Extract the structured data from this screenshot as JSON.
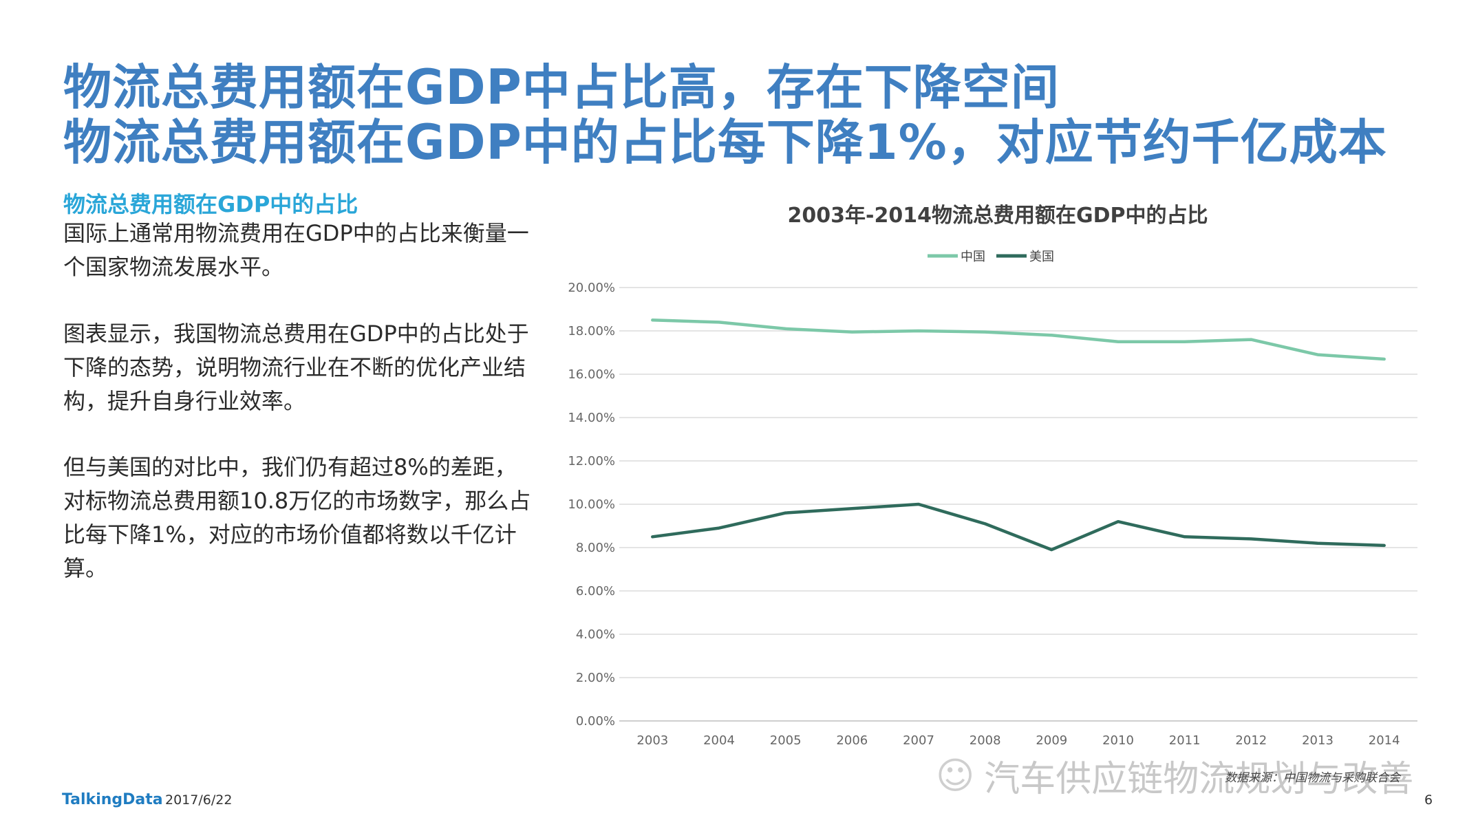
{
  "header": {
    "line1": "物流总费用额在GDP中占比高，存在下降空间",
    "line2": "物流总费用额在GDP中的占比每下降1%，对应节约千亿成本"
  },
  "left": {
    "subtitle": "物流总费用额在GDP中的占比",
    "para1": "国际上通常用物流费用在GDP中的占比来衡量一个国家物流发展水平。",
    "para2": "图表显示，我国物流总费用在GDP中的占比处于下降的态势，说明物流行业在不断的优化产业结构，提升自身行业效率。",
    "para3": "但与美国的对比中，我们仍有超过8%的差距，对标物流总费用额10.8万亿的市场数字，那么占比每下降1%，对应的市场价值都将数以千亿计算。"
  },
  "chart_data": {
    "type": "line",
    "title": "2003年-2014物流总费用额在GDP中的占比",
    "x": [
      "2003",
      "2004",
      "2005",
      "2006",
      "2007",
      "2008",
      "2009",
      "2010",
      "2011",
      "2012",
      "2013",
      "2014"
    ],
    "series": [
      {
        "name": "中国",
        "color": "#7cc8a8",
        "values": [
          18.5,
          18.4,
          18.1,
          17.95,
          18.0,
          17.95,
          17.8,
          17.5,
          17.5,
          17.6,
          16.9,
          16.7
        ]
      },
      {
        "name": "美国",
        "color": "#2f6b5c",
        "values": [
          8.5,
          8.9,
          9.6,
          9.8,
          10.0,
          9.1,
          7.9,
          9.2,
          8.5,
          8.4,
          8.2,
          8.1
        ]
      }
    ],
    "yticks": [
      "0.00%",
      "2.00%",
      "4.00%",
      "6.00%",
      "8.00%",
      "10.00%",
      "12.00%",
      "14.00%",
      "16.00%",
      "18.00%",
      "20.00%"
    ],
    "ylim": [
      0,
      20
    ],
    "legend": "top-center",
    "grid": true
  },
  "footer": {
    "watermark": "汽车供应链物流规划与改善",
    "source": "数据来源：中国物流与采购联合会",
    "logo": "TalkingData",
    "date": "2017/6/22",
    "page": "6"
  }
}
